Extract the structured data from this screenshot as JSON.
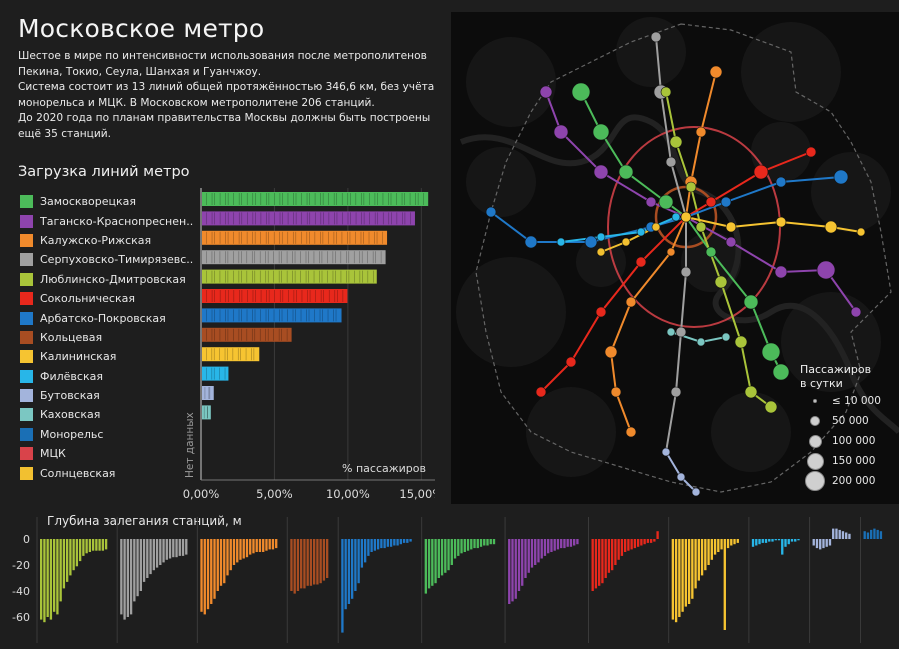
{
  "header": {
    "title": "Московское метро",
    "desc": [
      "Шестое в мире по интенсивности использования после метрополитенов",
      "Пекина, Токио, Сеула, Шанхая и Гуанчжоу.",
      "Система состоит из 13 линий  общей протяжённостью 346,6 км, без учёта",
      "монорельса и МЦК. В Московском метрополитене 206 станций.",
      "До 2020 года по планам правительства Москвы должны быть построены",
      "ещё 35 станций."
    ]
  },
  "lines_panel": {
    "title": "Загрузка линий метро",
    "no_data_label": "Нет данных",
    "axis_label": "% пассажиров"
  },
  "lines": [
    {
      "name": "Замоскворецкая",
      "color": "#4cbb5a"
    },
    {
      "name": "Таганско-Краснопресненская",
      "short": "Таганско-Краснопреснен..",
      "color": "#8e44ad"
    },
    {
      "name": "Калужско-Рижская",
      "color": "#f08a2c"
    },
    {
      "name": "Серпуховско-Тимирязевская",
      "short": "Серпуховско-Тимирязевс..",
      "color": "#a0a0a0"
    },
    {
      "name": "Люблинско-Дмитровская",
      "color": "#a9c43a"
    },
    {
      "name": "Сокольническая",
      "color": "#e8281c"
    },
    {
      "name": "Арбатско-Покровская",
      "color": "#1f78c8"
    },
    {
      "name": "Кольцевая",
      "color": "#a84d22"
    },
    {
      "name": "Калининская",
      "color": "#f6c431"
    },
    {
      "name": "Филёвская",
      "color": "#28b6e8"
    },
    {
      "name": "Бутовская",
      "color": "#a3b4dc"
    },
    {
      "name": "Каховская",
      "color": "#7bc7c2"
    },
    {
      "name": "Монорельс",
      "color": "#1a6fb5"
    },
    {
      "name": "МЦК",
      "color": "#d9434a"
    },
    {
      "name": "Солнцевская",
      "color": "#f2c030"
    }
  ],
  "map_legend": {
    "title_line1": "Пассажиров",
    "title_line2": "в сутки",
    "sizes": [
      "≤ 10 000",
      "50 000",
      "100 000",
      "150 000",
      "200 000"
    ]
  },
  "depth_panel": {
    "title": "Глубина залегания станций, м"
  },
  "chart_data": [
    {
      "type": "bar",
      "title": "Загрузка линий метро",
      "xlabel": "% пассажиров",
      "ylabel": "Нет данных",
      "orientation": "horizontal",
      "categories": [
        "Замоскворецкая",
        "Таганско-Краснопресненская",
        "Калужско-Рижская",
        "Серпуховско-Тимирязевская",
        "Люблинско-Дмитровская",
        "Сокольническая",
        "Арбатско-Покровская",
        "Кольцевая",
        "Калининская",
        "Филёвская",
        "Бутовская",
        "Каховская",
        "Монорельс",
        "МЦК",
        "Солнцевская"
      ],
      "values": [
        15.4,
        14.5,
        12.6,
        12.5,
        11.9,
        9.9,
        9.5,
        6.1,
        3.9,
        1.8,
        0.8,
        0.6,
        null,
        null,
        null
      ],
      "xlim": [
        0,
        16
      ],
      "xticks": [
        "0,00%",
        "5,00%",
        "10,00%",
        "15,00%"
      ],
      "xtick_values": [
        0,
        5,
        10,
        15
      ]
    },
    {
      "type": "bar",
      "title": "Глубина залегания станций, м",
      "ylim": [
        -70,
        10
      ],
      "yticks": [
        0,
        -20,
        -40,
        -60
      ],
      "groups": [
        {
          "line": "Люблинско-Дмитровская",
          "color": "#a9c43a",
          "values": [
            -62,
            -64,
            -60,
            -62,
            -56,
            -58,
            -48,
            -38,
            -33,
            -28,
            -24,
            -21,
            -17,
            -13,
            -11,
            -10,
            -9,
            -9,
            -9,
            -9,
            -8
          ]
        },
        {
          "line": "Серпуховско-Тимирязевская",
          "color": "#a0a0a0",
          "values": [
            -58,
            -62,
            -60,
            -58,
            -48,
            -44,
            -40,
            -33,
            -30,
            -27,
            -24,
            -22,
            -20,
            -18,
            -16,
            -15,
            -14,
            -14,
            -13,
            -13,
            -12
          ]
        },
        {
          "line": "Калужско-Рижская",
          "color": "#f08a2c",
          "values": [
            -56,
            -58,
            -54,
            -50,
            -46,
            -40,
            -36,
            -34,
            -28,
            -24,
            -20,
            -18,
            -16,
            -15,
            -14,
            -12,
            -11,
            -10,
            -10,
            -10,
            -9,
            -8,
            -8,
            -7
          ]
        },
        {
          "line": "Кольцевая",
          "color": "#a84d22",
          "values": [
            -40,
            -42,
            -40,
            -38,
            -38,
            -36,
            -36,
            -35,
            -35,
            -34,
            -32,
            -30
          ]
        },
        {
          "line": "Арбатско-Покровская",
          "color": "#1f78c8",
          "values": [
            -72,
            -54,
            -50,
            -46,
            -40,
            -34,
            -22,
            -18,
            -13,
            -10,
            -9,
            -8,
            -7,
            -7,
            -6,
            -6,
            -5,
            -5,
            -4,
            -3,
            -3,
            -2
          ]
        },
        {
          "line": "Замоскворецкая",
          "color": "#4cbb5a",
          "values": [
            -42,
            -38,
            -36,
            -34,
            -30,
            -28,
            -26,
            -24,
            -20,
            -15,
            -13,
            -11,
            -10,
            -9,
            -8,
            -7,
            -7,
            -6,
            -5,
            -5,
            -4,
            -4
          ]
        },
        {
          "line": "Таганско-Краснопресненская",
          "color": "#8e44ad",
          "values": [
            -50,
            -48,
            -46,
            -40,
            -36,
            -30,
            -26,
            -22,
            -20,
            -18,
            -15,
            -13,
            -11,
            -10,
            -9,
            -8,
            -7,
            -7,
            -6,
            -6,
            -5,
            -4
          ]
        },
        {
          "line": "Сокольническая",
          "color": "#e8281c",
          "values": [
            -40,
            -38,
            -36,
            -34,
            -30,
            -26,
            -24,
            -20,
            -16,
            -13,
            -10,
            -9,
            -8,
            -7,
            -6,
            -5,
            -4,
            -3,
            -3,
            -2,
            6
          ]
        },
        {
          "line": "Калининская",
          "color": "#f6c431",
          "values": [
            -62,
            -64,
            -60,
            -56,
            -52,
            -50,
            -46,
            -38,
            -32,
            -28,
            -24,
            -20,
            -16,
            -12,
            -10,
            -8,
            -70,
            -7,
            -5,
            -4,
            -3
          ]
        },
        {
          "line": "Филёвская",
          "color": "#28b6e8",
          "values": [
            -6,
            -5,
            -4,
            -3,
            -3,
            -2,
            -2,
            -1,
            -1,
            -12,
            -6,
            -4,
            -2,
            -2,
            -1
          ]
        },
        {
          "line": "Бутовская",
          "color": "#a3b4dc",
          "values": [
            -5,
            -7,
            -8,
            -7,
            -6,
            -5,
            8,
            8,
            7,
            6,
            5,
            4
          ]
        },
        {
          "line": "Монорельс",
          "color": "#1a6fb5",
          "values": [
            6,
            5,
            7,
            8,
            7,
            6
          ]
        }
      ]
    }
  ]
}
